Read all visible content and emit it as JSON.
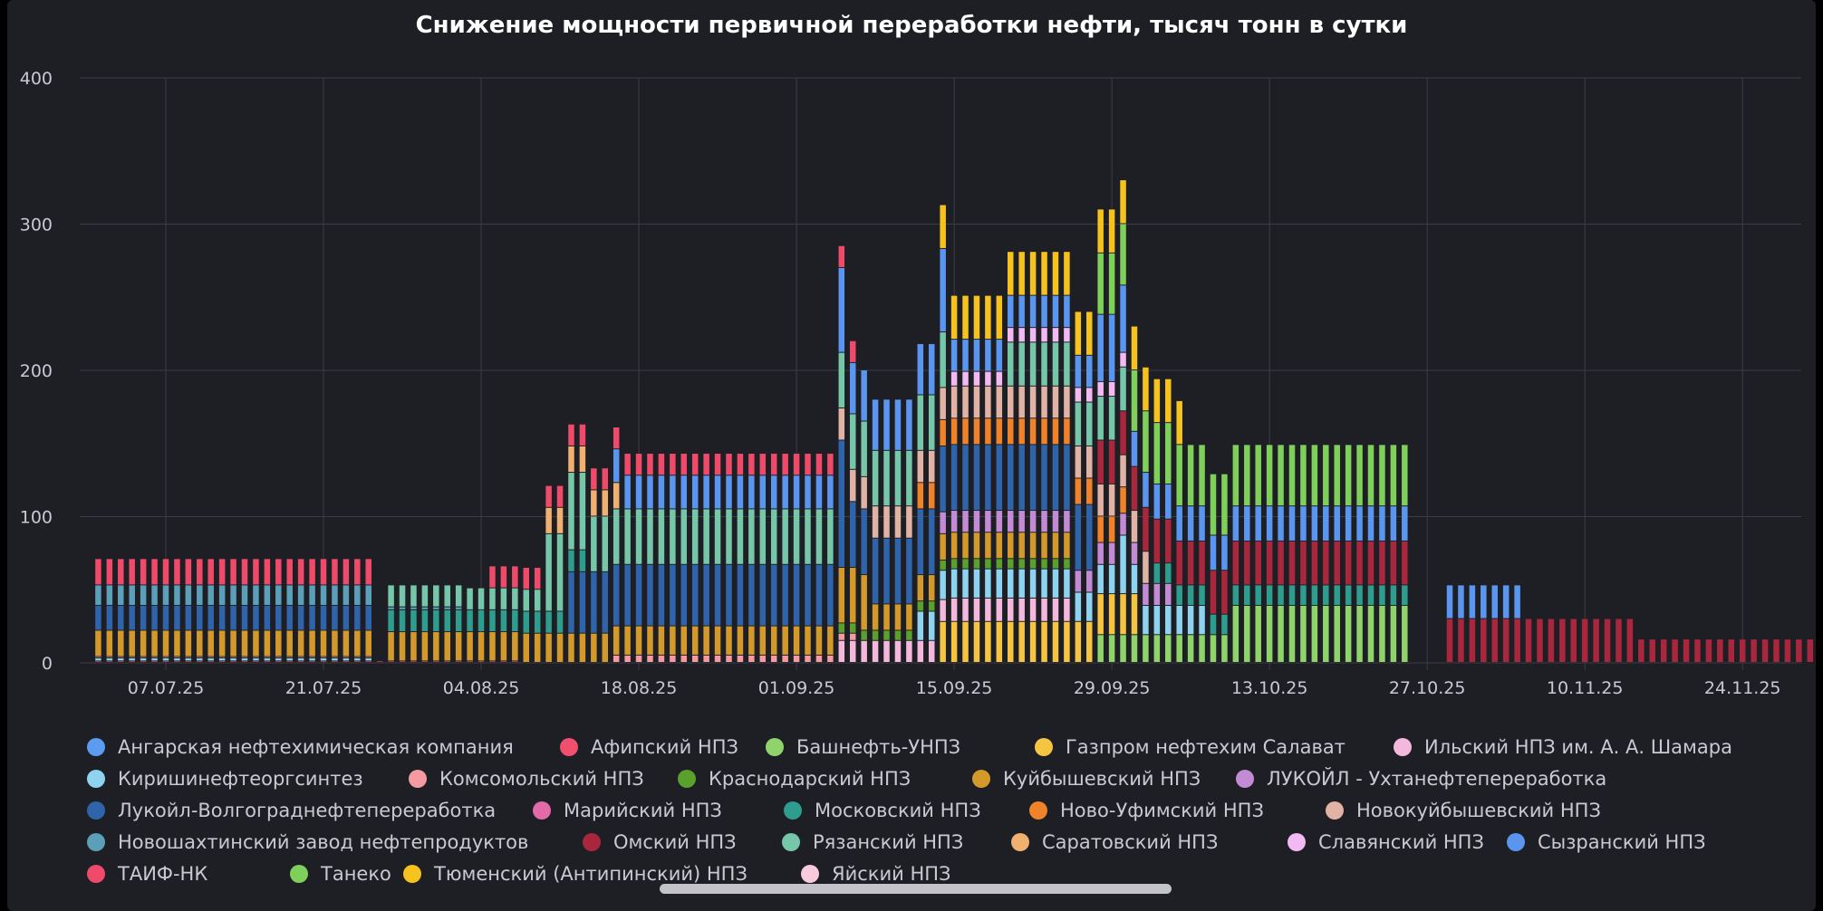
{
  "colors": {
    "background": "#1e1f25",
    "grid": "#3c3e45",
    "text": "#c9cad1",
    "title": "#ffffff"
  },
  "chart_data": {
    "type": "bar",
    "stacked": true,
    "title": "Снижение мощности первичной переработки нефти, тысяч тонн в сутки",
    "xlabel": "",
    "ylabel": "",
    "ylim": [
      0,
      400
    ],
    "yticks": [
      0,
      100,
      200,
      300,
      400
    ],
    "xticks": [
      "07.07.25",
      "21.07.25",
      "04.08.25",
      "18.08.25",
      "01.09.25",
      "15.09.25",
      "29.09.25",
      "13.10.25",
      "27.10.25",
      "10.11.25",
      "24.11.25"
    ],
    "date_start": "01.07.25",
    "date_end": "02.12.25",
    "grid": true,
    "legend_position": "bottom",
    "series": [
      {
        "name": "Ангарская нефтехимическая компания",
        "color": "#5b9bf0",
        "segments": []
      },
      {
        "name": "Афипский НПЗ",
        "color": "#f0506e",
        "segments": [
          {
            "from": "01.07.25",
            "to": "07.08.25",
            "value": 1
          }
        ]
      },
      {
        "name": "Башнефть-УНПЗ",
        "color": "#8fd46a",
        "segments": [
          {
            "from": "28.09.25",
            "to": "25.10.25",
            "value": 19
          },
          {
            "from": "10.10.25",
            "to": "25.10.25",
            "value": 20
          }
        ]
      },
      {
        "name": "Газпром нефтехим Салават",
        "color": "#f5c542",
        "segments": [
          {
            "from": "14.09.25",
            "to": "01.10.25",
            "value": 28
          }
        ]
      },
      {
        "name": "Ильский НПЗ им. А. А. Шамара",
        "color": "#f4b8dc",
        "segments": [
          {
            "from": "05.09.25",
            "to": "14.09.25",
            "value": 15
          },
          {
            "from": "15.09.25",
            "to": "25.09.25",
            "value": 16
          }
        ]
      },
      {
        "name": "Киришинефтеоргсинтез",
        "color": "#8ed3ef",
        "segments": [
          {
            "from": "01.07.25",
            "to": "25.07.25",
            "value": 2
          },
          {
            "from": "12.09.25",
            "to": "30.09.25",
            "value": 20
          },
          {
            "from": "30.09.25",
            "to": "07.10.25",
            "value": 20
          }
        ]
      },
      {
        "name": "Комсомольский НПЗ",
        "color": "#f49aa0",
        "segments": [
          {
            "from": "01.07.25",
            "to": "25.07.25",
            "value": 1
          },
          {
            "from": "16.08.25",
            "to": "06.09.25",
            "value": 5
          }
        ]
      },
      {
        "name": "Краснодарский НПЗ",
        "color": "#5aa02c",
        "segments": [
          {
            "from": "05.09.25",
            "to": "25.09.25",
            "value": 7
          }
        ]
      },
      {
        "name": "Куйбышевский НПЗ",
        "color": "#d39a2b",
        "segments": [
          {
            "from": "01.07.25",
            "to": "25.07.25",
            "value": 18
          },
          {
            "from": "27.07.25",
            "to": "09.08.25",
            "value": 20
          },
          {
            "from": "10.08.25",
            "to": "07.09.25",
            "value": 20
          },
          {
            "from": "05.09.25",
            "to": "25.09.25",
            "value": 18
          }
        ]
      },
      {
        "name": "ЛУКОЙЛ - Ухтанефтепереработка",
        "color": "#c38bd3",
        "segments": [
          {
            "from": "14.09.25",
            "to": "04.10.25",
            "value": 15
          }
        ]
      },
      {
        "name": "Лукойл-Волгограднефтепереработка",
        "color": "#2f63aa",
        "segments": [
          {
            "from": "01.07.25",
            "to": "25.07.25",
            "value": 17
          },
          {
            "from": "12.08.25",
            "to": "05.09.25",
            "value": 42
          },
          {
            "from": "05.09.25",
            "to": "27.09.25",
            "value": 45
          }
        ]
      },
      {
        "name": "Марийский НПЗ",
        "color": "#e26aa8",
        "segments": []
      },
      {
        "name": "Московский НПЗ",
        "color": "#2e9d8e",
        "segments": [
          {
            "from": "27.07.25",
            "to": "13.08.25",
            "value": 15
          },
          {
            "from": "03.10.25",
            "to": "25.10.25",
            "value": 14
          }
        ]
      },
      {
        "name": "Ново-Уфимский НПЗ",
        "color": "#f0822a",
        "segments": [
          {
            "from": "12.09.25",
            "to": "30.09.25",
            "value": 18
          }
        ]
      },
      {
        "name": "Новокуйбышевский НПЗ",
        "color": "#e0b3a5",
        "segments": [
          {
            "from": "05.09.25",
            "to": "02.10.25",
            "value": 22
          }
        ]
      },
      {
        "name": "Новошахтинский завод нефтепродуктов",
        "color": "#5c9fb8",
        "segments": [
          {
            "from": "01.07.25",
            "to": "25.07.25",
            "value": 14
          },
          {
            "from": "27.07.25",
            "to": "02.08.25",
            "value": 2
          }
        ]
      },
      {
        "name": "Омский НПЗ",
        "color": "#a8273d",
        "segments": [
          {
            "from": "28.09.25",
            "to": "25.10.25",
            "value": 30
          },
          {
            "from": "29.10.25",
            "to": "01.12.25",
            "value": 16
          },
          {
            "from": "29.10.25",
            "to": "14.11.25",
            "value": 14
          }
        ]
      },
      {
        "name": "Рязанский НПЗ",
        "color": "#76c6a9",
        "segments": [
          {
            "from": "27.07.25",
            "to": "13.08.25",
            "value": 15
          },
          {
            "from": "10.08.25",
            "to": "14.09.25",
            "value": 38
          },
          {
            "from": "20.09.25",
            "to": "30.09.25",
            "value": 30
          }
        ]
      },
      {
        "name": "Саратовский НПЗ",
        "color": "#f0b070",
        "segments": [
          {
            "from": "10.08.25",
            "to": "16.08.25",
            "value": 18
          }
        ]
      },
      {
        "name": "Славянский НПЗ",
        "color": "#f2b9f2",
        "segments": [
          {
            "from": "15.09.25",
            "to": "30.09.25",
            "value": 10
          }
        ]
      },
      {
        "name": "Сызранский НПЗ",
        "color": "#5a96ef",
        "segments": [
          {
            "from": "16.08.25",
            "to": "05.09.25",
            "value": 23
          },
          {
            "from": "05.09.25",
            "to": "14.09.25",
            "value": 35
          },
          {
            "from": "14.09.25",
            "to": "30.09.25",
            "value": 22
          },
          {
            "from": "28.09.25",
            "to": "25.10.25",
            "value": 24
          },
          {
            "from": "29.10.25",
            "to": "04.11.25",
            "value": 23
          }
        ]
      },
      {
        "name": "ТАИФ-НК",
        "color": "#ef4a69",
        "segments": [
          {
            "from": "01.07.25",
            "to": "25.07.25",
            "value": 18
          },
          {
            "from": "05.08.25",
            "to": "06.09.25",
            "value": 15
          }
        ]
      },
      {
        "name": "Танеко",
        "color": "#7ed05a",
        "segments": [
          {
            "from": "28.09.25",
            "to": "25.10.25",
            "value": 42
          }
        ]
      },
      {
        "name": "Тюменский (Антипинский) НПЗ",
        "color": "#f6c21e",
        "segments": [
          {
            "from": "14.09.25",
            "to": "05.10.25",
            "value": 30
          }
        ]
      },
      {
        "name": "Яйский НПЗ",
        "color": "#f9c9dc",
        "segments": []
      }
    ]
  }
}
